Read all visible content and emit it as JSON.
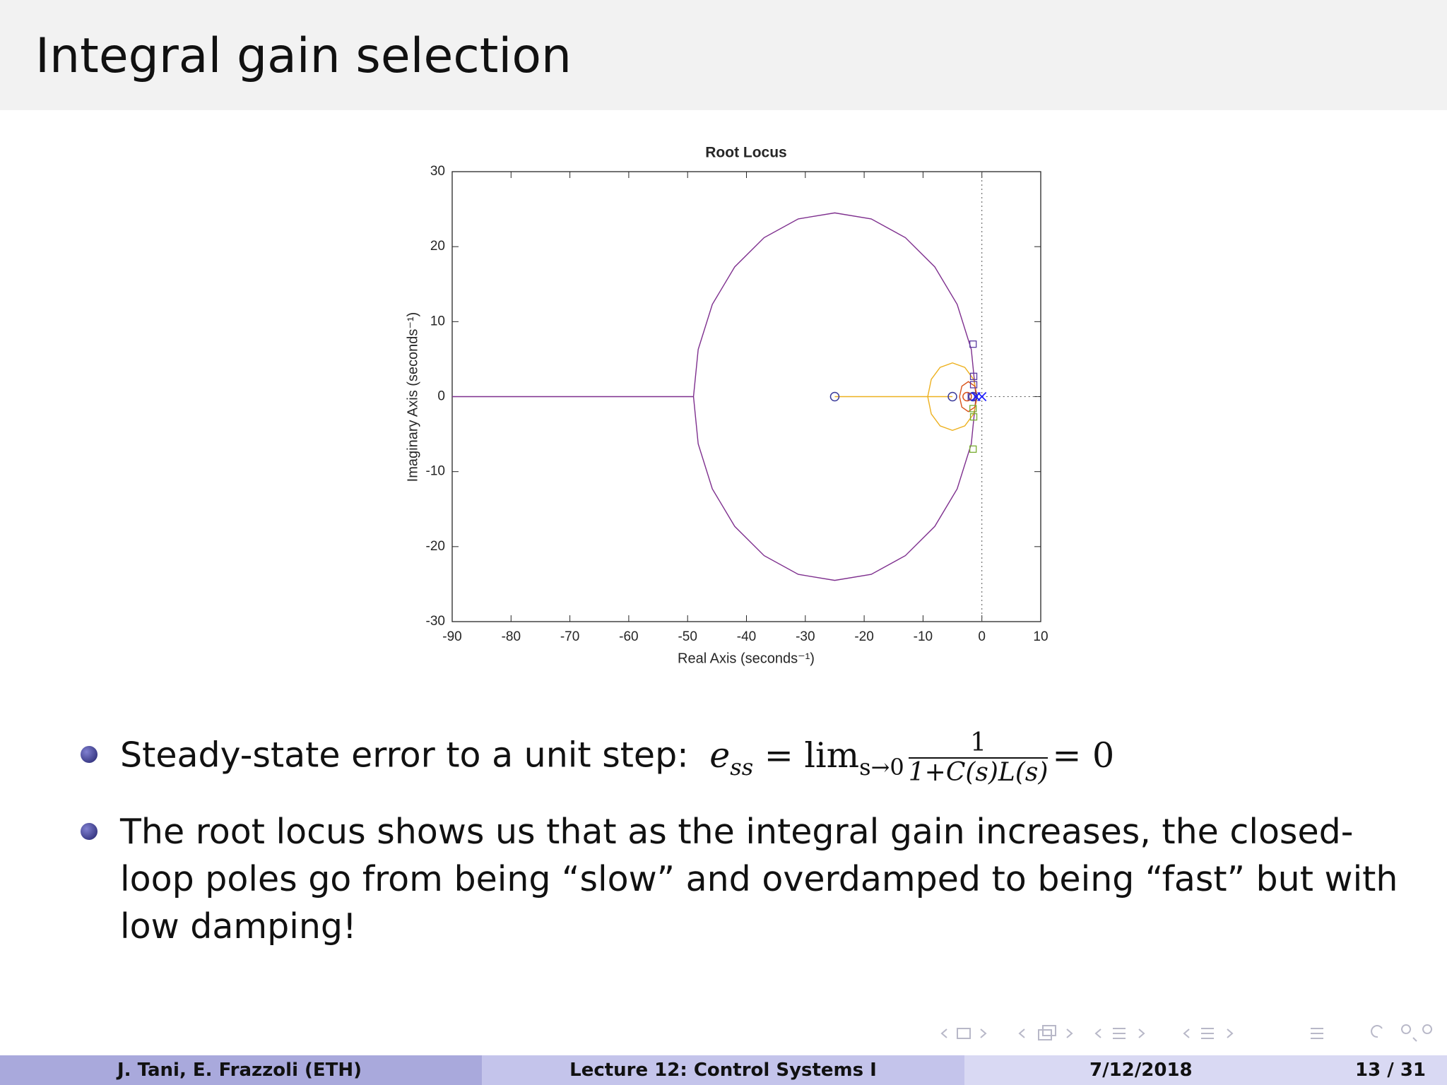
{
  "header": {
    "title": "Integral gain selection"
  },
  "chart_data": {
    "type": "root-locus",
    "title": "Root Locus",
    "xlabel": "Real Axis (seconds⁻¹)",
    "ylabel": "Imaginary Axis (seconds⁻¹)",
    "xlim": [
      -90,
      10
    ],
    "ylim": [
      -30,
      30
    ],
    "xticks": [
      -90,
      -80,
      -70,
      -60,
      -50,
      -40,
      -30,
      -20,
      -10,
      0,
      10
    ],
    "yticks": [
      -30,
      -20,
      -10,
      0,
      10,
      20,
      30
    ],
    "series": [
      {
        "style": "line",
        "color": "#7e2f8e",
        "x": [
          -90,
          -49,
          null,
          -1,
          -1.8,
          -4.2,
          -8,
          -13,
          -18.8,
          -25,
          -31.2,
          -37,
          -42,
          -45.8,
          -48.2,
          -49,
          -48.2,
          -45.8,
          -42,
          -37,
          -31.2,
          -25,
          -18.8,
          -13,
          -8,
          -4.2,
          -1.8,
          -1
        ],
        "y": [
          0,
          0,
          null,
          0,
          6.3,
          12.3,
          17.3,
          21.2,
          23.7,
          24.5,
          23.7,
          21.2,
          17.3,
          12.3,
          6.3,
          0,
          -6.3,
          -12.3,
          -17.3,
          -21.2,
          -23.7,
          -24.5,
          -23.7,
          -21.2,
          -17.3,
          -12.3,
          -6.3,
          0
        ]
      },
      {
        "style": "line",
        "color": "#edb120",
        "x": [
          -25,
          -5,
          null,
          -0.8,
          -1.4,
          -2.9,
          -5,
          -7.1,
          -8.6,
          -9.2,
          -8.6,
          -7.1,
          -5,
          -2.9,
          -1.4,
          -0.8
        ],
        "y": [
          0,
          0,
          null,
          0,
          2.3,
          3.9,
          4.5,
          3.9,
          2.3,
          0,
          -2.3,
          -3.9,
          -4.5,
          -3.9,
          -2.3,
          0
        ]
      },
      {
        "style": "line",
        "color": "#d95319",
        "x": [
          -0.8,
          -1.2,
          -2.3,
          -3.4,
          -3.8,
          -3.4,
          -2.3,
          -1.2,
          -0.8
        ],
        "y": [
          0,
          1.4,
          2,
          1.4,
          0,
          -1.4,
          -2,
          -1.4,
          0
        ]
      },
      {
        "style": "circle",
        "color": "#3a3a9a",
        "x": [
          -25,
          -5,
          -1.5
        ],
        "y": [
          0,
          0,
          0
        ]
      },
      {
        "style": "circle",
        "color": "#d95319",
        "x": [
          -2.5
        ],
        "y": [
          0
        ]
      },
      {
        "style": "square",
        "color": "#5a3aa0",
        "x": [
          -1.5,
          -1.4,
          -1.4,
          -1.8
        ],
        "y": [
          7,
          2.7,
          1.6,
          0
        ]
      },
      {
        "style": "square",
        "color": "#77ac30",
        "x": [
          -1.5,
          -1.4,
          -1.5
        ],
        "y": [
          -1.6,
          -2.7,
          -7
        ]
      },
      {
        "style": "x",
        "color": "#1a1aff",
        "x": [
          0,
          -1
        ],
        "y": [
          0,
          0
        ]
      }
    ]
  },
  "bullets": [
    {
      "text": "Steady-state error to a unit step:",
      "math": {
        "e": "e",
        "sub": "ss",
        "eq": "= lim",
        "limsub": "s→0",
        "num": "1",
        "den": "1+C(s)L(s)",
        "result": "= 0"
      }
    },
    {
      "text": "The root locus shows us that as the integral gain increases, the closed-loop poles go from being “slow” and overdamped to being “fast” but with low damping!"
    }
  ],
  "footer": {
    "authors": "J. Tani, E. Frazzoli  (ETH)",
    "lecture": "Lecture 12: Control Systems I",
    "date": "7/12/2018",
    "page": "13 / 31"
  }
}
